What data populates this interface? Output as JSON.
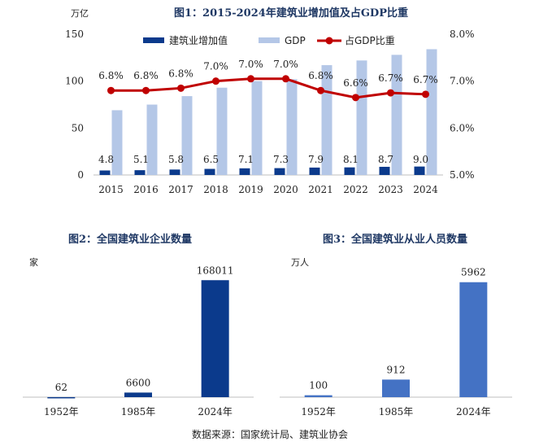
{
  "source": "数据来源：国家统计局、建筑业协会",
  "chart_data": [
    {
      "type": "bar",
      "title": "图1：2015-2024年建筑业增加值及占GDP比重",
      "y_unit": "万亿",
      "categories": [
        "2015",
        "2016",
        "2017",
        "2018",
        "2019",
        "2020",
        "2021",
        "2022",
        "2023",
        "2024"
      ],
      "ylim": [
        0,
        150
      ],
      "yticks": [
        "0",
        "50",
        "100",
        "150"
      ],
      "y2lim": [
        5.0,
        8.0
      ],
      "y2ticks": [
        "5.0%",
        "6.0%",
        "7.0%",
        "8.0%"
      ],
      "legend_position": "top",
      "series": [
        {
          "name": "建筑业增加值",
          "kind": "bar",
          "color": "#0b3a8c",
          "values": [
            4.8,
            5.1,
            5.8,
            6.5,
            7.1,
            7.3,
            7.9,
            8.1,
            8.7,
            9.0
          ],
          "labels": [
            "4.8",
            "5.1",
            "5.8",
            "6.5",
            "7.1",
            "7.3",
            "7.9",
            "8.1",
            "8.7",
            "9.0"
          ]
        },
        {
          "name": "GDP",
          "kind": "bar",
          "color": "#b4c7e7",
          "values": [
            69,
            75,
            84,
            93,
            100,
            102,
            117,
            122,
            128,
            134
          ]
        },
        {
          "name": "占GDP比重",
          "kind": "line",
          "axis": "right",
          "color": "#c00000",
          "values": [
            6.8,
            6.8,
            6.85,
            7.0,
            7.05,
            7.05,
            6.8,
            6.65,
            6.75,
            6.72
          ],
          "labels": [
            "6.8%",
            "6.8%",
            "6.8%",
            "7.0%",
            "7.0%",
            "7.0%",
            "6.8%",
            "6.6%",
            "6.7%",
            "6.7%"
          ]
        }
      ]
    },
    {
      "type": "bar",
      "title": "图2：全国建筑业企业数量",
      "y_unit": "家",
      "categories": [
        "1952年",
        "1985年",
        "2024年"
      ],
      "values": [
        62,
        6600,
        168011
      ],
      "labels": [
        "62",
        "6600",
        "168011"
      ],
      "color": "#0b3a8c",
      "ylim": [
        0,
        180000
      ]
    },
    {
      "type": "bar",
      "title": "图3：全国建筑业从业人员数量",
      "y_unit": "万人",
      "categories": [
        "1952年",
        "1985年",
        "2024年"
      ],
      "values": [
        100,
        912,
        5962
      ],
      "labels": [
        "100",
        "912",
        "5962"
      ],
      "color": "#4472c4",
      "ylim": [
        0,
        6500
      ]
    }
  ]
}
